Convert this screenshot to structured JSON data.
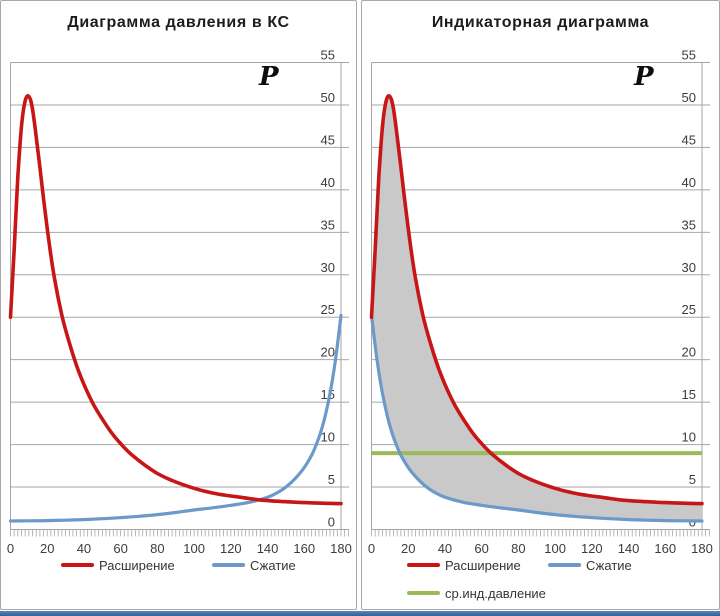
{
  "colors": {
    "expansion": "#c81616",
    "compression": "#6b99c9",
    "mean_line": "#9bbb59",
    "area_fill": "#c9c9c9",
    "gridline": "#a6a6a6",
    "tick_text": "#3c3c3c",
    "bottom_strip": "#44709e"
  },
  "chart_data": [
    {
      "type": "line",
      "title": "Диаграмма давления в КС",
      "y_axis_label": "P",
      "xlabel": "",
      "ylabel": "P",
      "x_range": [
        0,
        180
      ],
      "y_range": [
        0,
        55
      ],
      "x_ticks": [
        0,
        20,
        40,
        60,
        80,
        100,
        120,
        140,
        160,
        180
      ],
      "y_ticks": [
        0,
        5,
        10,
        15,
        20,
        25,
        30,
        35,
        40,
        45,
        50,
        55
      ],
      "grid": "horizontal",
      "legend_position": "bottom",
      "series": [
        {
          "name": "expansion",
          "label": "Расширение",
          "color": "#c81616",
          "points": [
            [
              0,
              25
            ],
            [
              2,
              33
            ],
            [
              4,
              41.5
            ],
            [
              6,
              47.5
            ],
            [
              8,
              50.5
            ],
            [
              10,
              51
            ],
            [
              12,
              49.5
            ],
            [
              15,
              44.5
            ],
            [
              18,
              39
            ],
            [
              21,
              33.8
            ],
            [
              24,
              29.5
            ],
            [
              28,
              25.2
            ],
            [
              32,
              22
            ],
            [
              36,
              19.3
            ],
            [
              40,
              17.1
            ],
            [
              45,
              14.8
            ],
            [
              50,
              13
            ],
            [
              55,
              11.4
            ],
            [
              60,
              10.1
            ],
            [
              65,
              9
            ],
            [
              70,
              8.1
            ],
            [
              75,
              7.3
            ],
            [
              80,
              6.6
            ],
            [
              85,
              6.05
            ],
            [
              90,
              5.6
            ],
            [
              95,
              5.2
            ],
            [
              100,
              4.85
            ],
            [
              105,
              4.55
            ],
            [
              110,
              4.3
            ],
            [
              115,
              4.1
            ],
            [
              120,
              3.95
            ],
            [
              125,
              3.8
            ],
            [
              130,
              3.65
            ],
            [
              135,
              3.5
            ],
            [
              140,
              3.4
            ],
            [
              145,
              3.33
            ],
            [
              150,
              3.27
            ],
            [
              155,
              3.22
            ],
            [
              160,
              3.17
            ],
            [
              165,
              3.13
            ],
            [
              170,
              3.1
            ],
            [
              175,
              3.07
            ],
            [
              180,
              3.05
            ]
          ]
        },
        {
          "name": "compression",
          "label": "Сжатие",
          "color": "#6b99c9",
          "points": [
            [
              0,
              1
            ],
            [
              10,
              1.02
            ],
            [
              20,
              1.05
            ],
            [
              30,
              1.1
            ],
            [
              40,
              1.17
            ],
            [
              50,
              1.27
            ],
            [
              60,
              1.4
            ],
            [
              70,
              1.55
            ],
            [
              80,
              1.75
            ],
            [
              90,
              2
            ],
            [
              100,
              2.3
            ],
            [
              110,
              2.55
            ],
            [
              120,
              2.85
            ],
            [
              130,
              3.2
            ],
            [
              140,
              3.8
            ],
            [
              145,
              4.3
            ],
            [
              150,
              5
            ],
            [
              155,
              6
            ],
            [
              160,
              7.3
            ],
            [
              165,
              9.2
            ],
            [
              170,
              12.2
            ],
            [
              174,
              16
            ],
            [
              177,
              20
            ],
            [
              180,
              25.2
            ]
          ]
        }
      ]
    },
    {
      "type": "line",
      "title": "Индикаторная диаграмма",
      "y_axis_label": "P",
      "xlabel": "",
      "ylabel": "P",
      "x_range": [
        0,
        180
      ],
      "y_range": [
        0,
        55
      ],
      "x_ticks": [
        0,
        20,
        40,
        60,
        80,
        100,
        120,
        140,
        160,
        180
      ],
      "y_ticks": [
        0,
        5,
        10,
        15,
        20,
        25,
        30,
        35,
        40,
        45,
        50,
        55
      ],
      "grid": "horizontal",
      "legend_position": "bottom",
      "area_fill": {
        "between": [
          "expansion",
          "compression"
        ],
        "color": "#c9c9c9"
      },
      "mean_line": {
        "label": "ср.инд.давление",
        "color": "#9bbb59",
        "value": 9
      },
      "series": [
        {
          "name": "expansion",
          "label": "Расширение",
          "color": "#c81616",
          "points": [
            [
              0,
              25
            ],
            [
              2,
              33
            ],
            [
              4,
              41.5
            ],
            [
              6,
              47.5
            ],
            [
              8,
              50.5
            ],
            [
              10,
              51
            ],
            [
              12,
              49.5
            ],
            [
              15,
              44.5
            ],
            [
              18,
              39
            ],
            [
              21,
              33.8
            ],
            [
              24,
              29.5
            ],
            [
              28,
              25.2
            ],
            [
              32,
              22
            ],
            [
              36,
              19.3
            ],
            [
              40,
              17.1
            ],
            [
              45,
              14.8
            ],
            [
              50,
              13
            ],
            [
              55,
              11.4
            ],
            [
              60,
              10.1
            ],
            [
              65,
              9
            ],
            [
              70,
              8.1
            ],
            [
              75,
              7.3
            ],
            [
              80,
              6.6
            ],
            [
              85,
              6.05
            ],
            [
              90,
              5.6
            ],
            [
              95,
              5.2
            ],
            [
              100,
              4.85
            ],
            [
              105,
              4.55
            ],
            [
              110,
              4.3
            ],
            [
              115,
              4.1
            ],
            [
              120,
              3.95
            ],
            [
              125,
              3.8
            ],
            [
              130,
              3.65
            ],
            [
              135,
              3.5
            ],
            [
              140,
              3.4
            ],
            [
              145,
              3.33
            ],
            [
              150,
              3.27
            ],
            [
              155,
              3.22
            ],
            [
              160,
              3.17
            ],
            [
              165,
              3.13
            ],
            [
              170,
              3.1
            ],
            [
              175,
              3.07
            ],
            [
              180,
              3.05
            ]
          ]
        },
        {
          "name": "compression",
          "label": "Сжатие",
          "color": "#6b99c9",
          "points": [
            [
              0,
              25.2
            ],
            [
              3,
              20
            ],
            [
              6,
              16
            ],
            [
              10,
              12.2
            ],
            [
              15,
              9.2
            ],
            [
              20,
              7.3
            ],
            [
              25,
              6
            ],
            [
              30,
              5
            ],
            [
              35,
              4.3
            ],
            [
              40,
              3.8
            ],
            [
              50,
              3.2
            ],
            [
              60,
              2.85
            ],
            [
              70,
              2.55
            ],
            [
              80,
              2.3
            ],
            [
              90,
              2
            ],
            [
              100,
              1.75
            ],
            [
              110,
              1.55
            ],
            [
              120,
              1.4
            ],
            [
              130,
              1.27
            ],
            [
              140,
              1.17
            ],
            [
              150,
              1.1
            ],
            [
              160,
              1.05
            ],
            [
              170,
              1.02
            ],
            [
              180,
              1
            ]
          ]
        }
      ]
    }
  ]
}
